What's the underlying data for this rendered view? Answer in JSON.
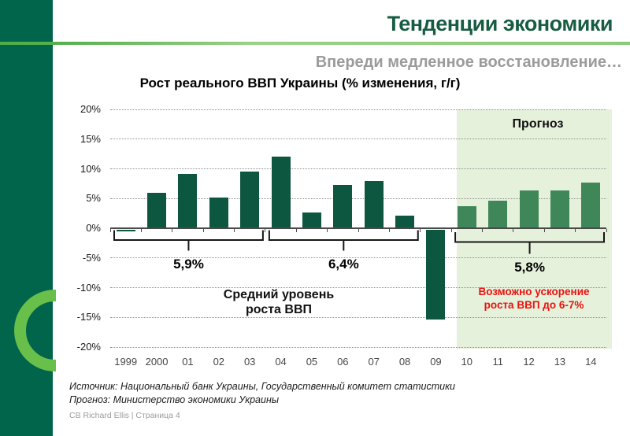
{
  "slide": {
    "title": "Тенденции экономики",
    "subtitle": "Впереди медленное восстановление…",
    "source_lines": [
      "Источник: Национальный банк Украины, Государственный комитет статистики",
      "Прогноз: Министерство экономики Украины"
    ],
    "page_footer": "CB Richard Ellis  |  Страница 4"
  },
  "chart_data": {
    "type": "bar",
    "title": "Рост реального ВВП Украины (% изменения, г/г)",
    "categories": [
      "1999",
      "2000",
      "01",
      "02",
      "03",
      "04",
      "05",
      "06",
      "07",
      "08",
      "09",
      "10",
      "11",
      "12",
      "13",
      "14"
    ],
    "series": [
      {
        "name": "Рост реального ВВП Украины, % г/г",
        "values": [
          -0.2,
          5.9,
          9.2,
          5.2,
          9.6,
          12.1,
          2.7,
          7.3,
          7.9,
          2.1,
          -15.1,
          3.7,
          4.7,
          6.3,
          6.3,
          7.7
        ]
      }
    ],
    "ylim": [
      -20,
      20
    ],
    "ytick_step": 5,
    "ytick_labels": [
      "20%",
      "15%",
      "10%",
      "5%",
      "0%",
      "-5%",
      "-10%",
      "-15%",
      "-20%"
    ],
    "grid": "horizontal-dotted",
    "legend": "none",
    "forecast_start_index": 11,
    "forecast_region_label": "Прогноз",
    "average_brackets": [
      {
        "from_index": 0,
        "to_index": 5,
        "label": "5,9%"
      },
      {
        "from_index": 5,
        "to_index": 10,
        "label": "6,4%"
      },
      {
        "from_index": 11,
        "to_index": 16,
        "label": "5,8%"
      }
    ],
    "annotations": [
      {
        "id": "avg-note",
        "lines": [
          "Средний уровень",
          "роста ВВП"
        ]
      },
      {
        "id": "forecast-note",
        "lines": [
          "Возможно ускорение",
          "роста ВВП до 6-7%"
        ]
      }
    ]
  },
  "colors": {
    "sidebar_green": "#00654b",
    "ring_green": "#68bf4a",
    "accent_line_start": "#4fad48",
    "accent_line_end": "#9ad186",
    "title_green": "#175c41",
    "subtitle_gray": "#9b9b9b",
    "bar_historic": "#0d5741",
    "bar_forecast": "#3f8758",
    "forecast_bg": "#e6f1dc",
    "note_red": "#ea120e",
    "bracket_stroke": "#161616"
  }
}
